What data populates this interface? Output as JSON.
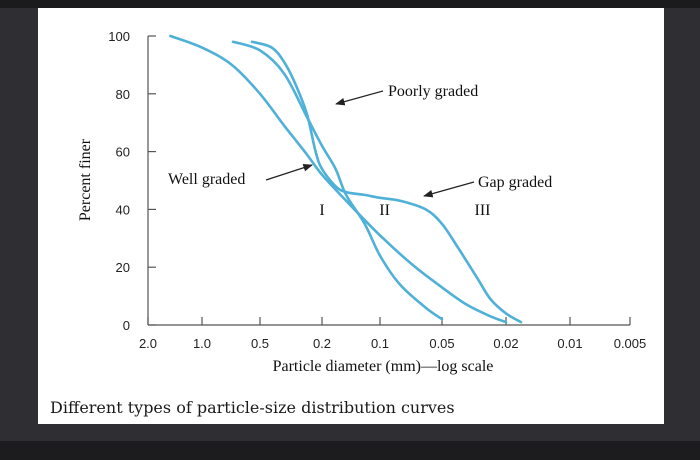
{
  "caption": "Different types of particle-size distribution curves",
  "chart_data": {
    "type": "line",
    "title": "",
    "xlabel": "Particle diameter (mm)—log scale",
    "ylabel": "Percent finer",
    "x_scale": "log",
    "x_direction": "decreasing",
    "xlim": [
      2.0,
      0.005
    ],
    "ylim": [
      0,
      100
    ],
    "x_ticks": [
      {
        "value": 2.0,
        "label": "2.0"
      },
      {
        "value": 1.0,
        "label": "1.0"
      },
      {
        "value": 0.5,
        "label": "0.5"
      },
      {
        "value": 0.2,
        "label": "0.2"
      },
      {
        "value": 0.1,
        "label": "0.1"
      },
      {
        "value": 0.05,
        "label": "0.05"
      },
      {
        "value": 0.02,
        "label": "0.02"
      },
      {
        "value": 0.01,
        "label": "0.01"
      },
      {
        "value": 0.005,
        "label": "0.005"
      }
    ],
    "y_ticks": [
      {
        "value": 0,
        "label": "0"
      },
      {
        "value": 20,
        "label": "20"
      },
      {
        "value": 40,
        "label": "40"
      },
      {
        "value": 60,
        "label": "60"
      },
      {
        "value": 80,
        "label": "80"
      },
      {
        "value": 100,
        "label": "100"
      }
    ],
    "grid": false,
    "line_color": "#4fb0d8",
    "series": [
      {
        "name": "I",
        "x": [
          0.69,
          0.5,
          0.35,
          0.25,
          0.2,
          0.17,
          0.15,
          0.12,
          0.1,
          0.08,
          0.06,
          0.05
        ],
        "y": [
          98,
          95,
          87,
          72,
          62,
          54,
          45,
          35,
          24,
          14,
          6,
          2
        ]
      },
      {
        "name": "II",
        "x": [
          1.5,
          1.0,
          0.7,
          0.5,
          0.35,
          0.25,
          0.2,
          0.15,
          0.1,
          0.07,
          0.05,
          0.035,
          0.025,
          0.02
        ],
        "y": [
          100,
          96,
          90,
          80,
          69,
          59,
          52,
          43,
          31,
          21,
          13,
          7,
          3,
          1
        ]
      },
      {
        "name": "III",
        "x": [
          0.55,
          0.42,
          0.35,
          0.3,
          0.25,
          0.22,
          0.2,
          0.17,
          0.15,
          0.12,
          0.1,
          0.08,
          0.06,
          0.05,
          0.04,
          0.03,
          0.025,
          0.02,
          0.017
        ],
        "y": [
          98,
          96,
          91,
          84,
          73,
          60,
          54,
          48,
          46,
          45,
          44,
          43,
          40,
          35,
          27,
          16,
          9,
          4,
          1
        ]
      }
    ],
    "curve_labels": [
      {
        "text": "I",
        "x": 0.2,
        "y": 38
      },
      {
        "text": "II",
        "x": 0.095,
        "y": 38
      },
      {
        "text": "III",
        "x": 0.028,
        "y": 38
      }
    ],
    "annotations": [
      {
        "text": "Poorly graded",
        "x": 0.09,
        "y": 87
      },
      {
        "text": "Well graded",
        "x": 0.92,
        "y": 51
      },
      {
        "text": "Gap graded",
        "x": 0.031,
        "y": 49
      }
    ]
  }
}
